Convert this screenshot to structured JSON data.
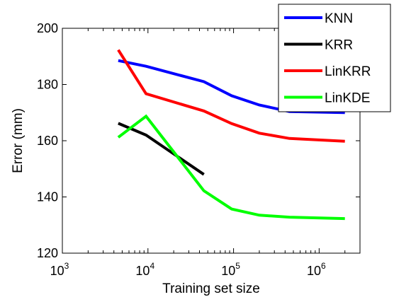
{
  "chart_data": {
    "type": "line",
    "xlabel": "Training set size",
    "ylabel": "Error (mm)",
    "xscale": "log",
    "xlim": [
      1000,
      3000000
    ],
    "ylim": [
      120,
      200
    ],
    "grid": false,
    "legend_position": "top-right",
    "xticks": [
      {
        "value": 1000,
        "base": "10",
        "exp": "3"
      },
      {
        "value": 10000,
        "base": "10",
        "exp": "4"
      },
      {
        "value": 100000,
        "base": "10",
        "exp": "5"
      },
      {
        "value": 1000000,
        "base": "10",
        "exp": "6"
      }
    ],
    "yticks": [
      120,
      140,
      160,
      180,
      200
    ],
    "series": [
      {
        "name": "KNN",
        "color": "#0000ff",
        "x": [
          4500,
          9500,
          45000,
          95000,
          200000,
          450000,
          2000000
        ],
        "y": [
          188.5,
          186.5,
          181,
          176,
          172.7,
          170.4,
          170
        ]
      },
      {
        "name": "KRR",
        "color": "#000000",
        "x": [
          4500,
          9500,
          45000
        ],
        "y": [
          166.2,
          162,
          148
        ]
      },
      {
        "name": "LinKRR",
        "color": "#ff0000",
        "x": [
          4500,
          9500,
          45000,
          95000,
          200000,
          450000,
          2000000
        ],
        "y": [
          192.3,
          176.7,
          170.6,
          166.1,
          162.7,
          160.8,
          159.8
        ]
      },
      {
        "name": "LinKDE",
        "color": "#00ff00",
        "x": [
          4500,
          9500,
          45000,
          95000,
          200000,
          450000,
          2000000
        ],
        "y": [
          161.2,
          168.7,
          142.2,
          135.7,
          133.5,
          132.8,
          132.3
        ]
      }
    ]
  }
}
